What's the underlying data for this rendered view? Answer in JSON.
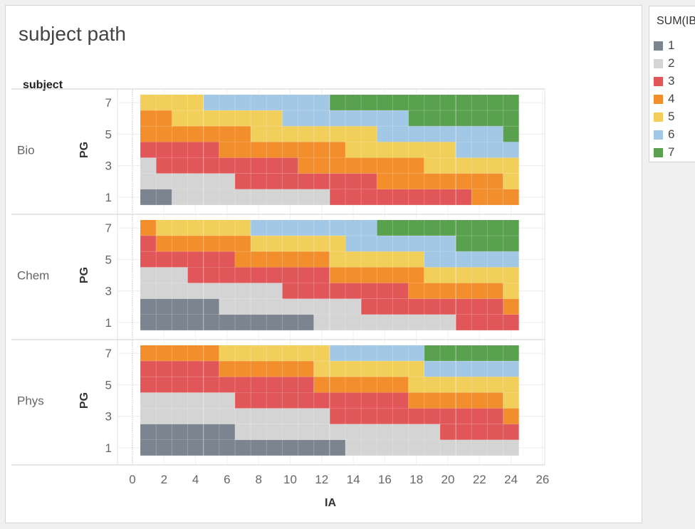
{
  "title": "subject path",
  "row_header": "subject",
  "legend": {
    "title": "SUM(IB)",
    "items": [
      {
        "label": "1",
        "color": "#7b848f"
      },
      {
        "label": "2",
        "color": "#d4d4d4"
      },
      {
        "label": "3",
        "color": "#e15759"
      },
      {
        "label": "4",
        "color": "#f28e2b"
      },
      {
        "label": "5",
        "color": "#f2ce5b"
      },
      {
        "label": "6",
        "color": "#a2c8e6"
      },
      {
        "label": "7",
        "color": "#59a14f"
      }
    ]
  },
  "chart_data": {
    "type": "heatmap",
    "title": "subject path",
    "xlabel": "IA",
    "ylabel": "PG",
    "row_dimension": "subject",
    "color_measure": "SUM(IB)",
    "x_ticks": [
      "0",
      "2",
      "4",
      "6",
      "8",
      "10",
      "12",
      "14",
      "16",
      "18",
      "20",
      "22",
      "24",
      "26"
    ],
    "y_ticks": [
      "1",
      "3",
      "5",
      "7"
    ],
    "xlim": [
      -1,
      26
    ],
    "ylim": [
      0.5,
      7.5
    ],
    "x_cells": [
      1,
      24
    ],
    "grid": true,
    "legend_position": "right",
    "panels": [
      {
        "subject": "Bio",
        "rows": [
          {
            "pg": 7,
            "segments": [
              [
                1,
                4,
                5
              ],
              [
                5,
                12,
                6
              ],
              [
                13,
                24,
                7
              ]
            ]
          },
          {
            "pg": 6,
            "segments": [
              [
                1,
                2,
                4
              ],
              [
                3,
                9,
                5
              ],
              [
                10,
                17,
                6
              ],
              [
                18,
                24,
                7
              ]
            ]
          },
          {
            "pg": 5,
            "segments": [
              [
                1,
                7,
                4
              ],
              [
                8,
                15,
                5
              ],
              [
                16,
                23,
                6
              ],
              [
                24,
                24,
                7
              ]
            ]
          },
          {
            "pg": 4,
            "segments": [
              [
                1,
                5,
                3
              ],
              [
                6,
                13,
                4
              ],
              [
                14,
                20,
                5
              ],
              [
                21,
                24,
                6
              ]
            ]
          },
          {
            "pg": 3,
            "segments": [
              [
                1,
                1,
                2
              ],
              [
                2,
                10,
                3
              ],
              [
                11,
                18,
                4
              ],
              [
                19,
                24,
                5
              ]
            ]
          },
          {
            "pg": 2,
            "segments": [
              [
                1,
                6,
                2
              ],
              [
                7,
                15,
                3
              ],
              [
                16,
                23,
                4
              ],
              [
                24,
                24,
                5
              ]
            ]
          },
          {
            "pg": 1,
            "segments": [
              [
                1,
                2,
                1
              ],
              [
                3,
                12,
                2
              ],
              [
                13,
                21,
                3
              ],
              [
                22,
                24,
                4
              ]
            ]
          }
        ]
      },
      {
        "subject": "Chem",
        "rows": [
          {
            "pg": 7,
            "segments": [
              [
                1,
                1,
                4
              ],
              [
                2,
                7,
                5
              ],
              [
                8,
                15,
                6
              ],
              [
                16,
                24,
                7
              ]
            ]
          },
          {
            "pg": 6,
            "segments": [
              [
                1,
                1,
                3
              ],
              [
                2,
                7,
                4
              ],
              [
                8,
                13,
                5
              ],
              [
                14,
                20,
                6
              ],
              [
                21,
                24,
                7
              ]
            ]
          },
          {
            "pg": 5,
            "segments": [
              [
                1,
                6,
                3
              ],
              [
                7,
                12,
                4
              ],
              [
                13,
                18,
                5
              ],
              [
                19,
                24,
                6
              ]
            ]
          },
          {
            "pg": 4,
            "segments": [
              [
                1,
                3,
                2
              ],
              [
                4,
                12,
                3
              ],
              [
                13,
                18,
                4
              ],
              [
                19,
                24,
                5
              ]
            ]
          },
          {
            "pg": 3,
            "segments": [
              [
                1,
                9,
                2
              ],
              [
                10,
                17,
                3
              ],
              [
                18,
                23,
                4
              ],
              [
                24,
                24,
                5
              ]
            ]
          },
          {
            "pg": 2,
            "segments": [
              [
                1,
                5,
                1
              ],
              [
                6,
                14,
                2
              ],
              [
                15,
                20,
                3
              ],
              [
                21,
                23,
                3
              ],
              [
                24,
                24,
                4
              ]
            ]
          },
          {
            "pg": 1,
            "segments": [
              [
                1,
                11,
                1
              ],
              [
                12,
                20,
                2
              ],
              [
                21,
                24,
                3
              ]
            ]
          }
        ]
      },
      {
        "subject": "Phys",
        "rows": [
          {
            "pg": 7,
            "segments": [
              [
                1,
                5,
                4
              ],
              [
                6,
                12,
                5
              ],
              [
                13,
                18,
                6
              ],
              [
                19,
                24,
                7
              ]
            ]
          },
          {
            "pg": 6,
            "segments": [
              [
                1,
                5,
                3
              ],
              [
                6,
                11,
                4
              ],
              [
                12,
                18,
                5
              ],
              [
                19,
                24,
                6
              ]
            ]
          },
          {
            "pg": 5,
            "segments": [
              [
                1,
                11,
                3
              ],
              [
                12,
                17,
                4
              ],
              [
                18,
                24,
                5
              ]
            ]
          },
          {
            "pg": 4,
            "segments": [
              [
                1,
                6,
                2
              ],
              [
                7,
                17,
                3
              ],
              [
                18,
                23,
                4
              ],
              [
                24,
                24,
                5
              ]
            ]
          },
          {
            "pg": 3,
            "segments": [
              [
                1,
                12,
                2
              ],
              [
                13,
                23,
                3
              ],
              [
                24,
                24,
                4
              ]
            ]
          },
          {
            "pg": 2,
            "segments": [
              [
                1,
                6,
                1
              ],
              [
                7,
                19,
                2
              ],
              [
                20,
                24,
                3
              ]
            ]
          },
          {
            "pg": 1,
            "segments": [
              [
                1,
                13,
                1
              ],
              [
                14,
                24,
                2
              ]
            ]
          }
        ]
      }
    ]
  }
}
